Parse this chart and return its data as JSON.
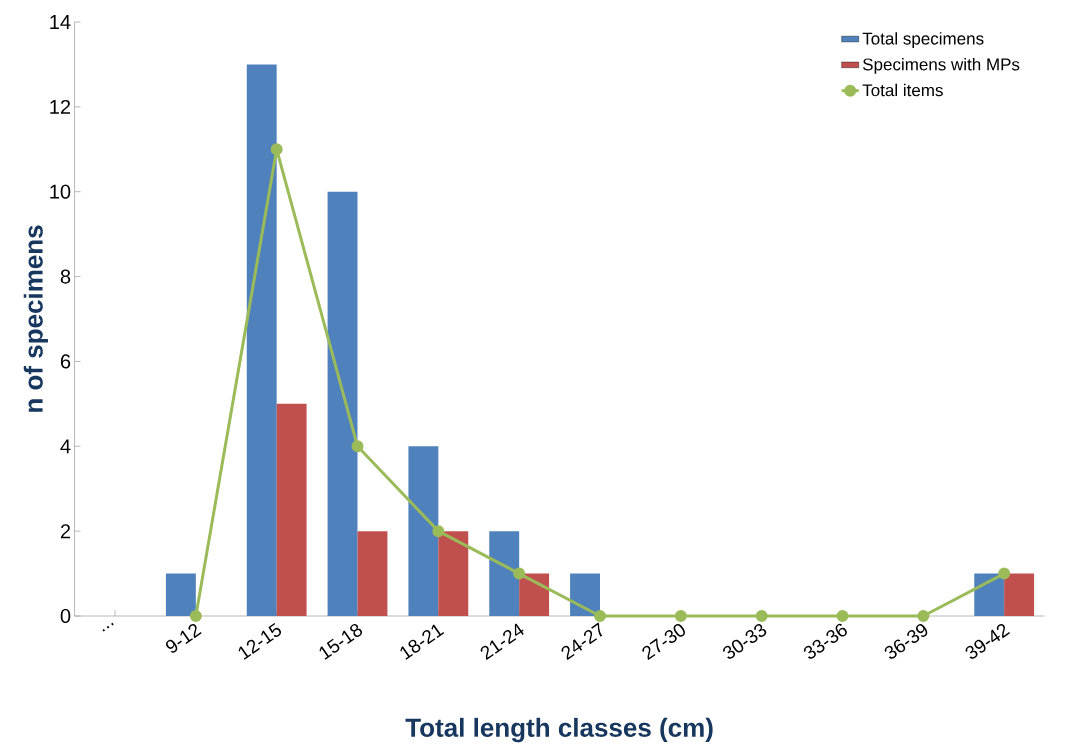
{
  "chart_data": {
    "type": "bar",
    "xlabel": "Total length classes (cm)",
    "ylabel": "n of specimens",
    "categories": [
      "...",
      "9-12",
      "12-15",
      "15-18",
      "18-21",
      "21-24",
      "24-27",
      "27-30",
      "30-33",
      "33-36",
      "36-39",
      "39-42"
    ],
    "series": [
      {
        "name": "Total specimens",
        "type": "bar",
        "color": "#4f81bd",
        "values": [
          null,
          1,
          13,
          10,
          4,
          2,
          1,
          0,
          0,
          0,
          0,
          1
        ]
      },
      {
        "name": "Specimens with MPs",
        "type": "bar",
        "color": "#c0504d",
        "values": [
          null,
          0,
          5,
          2,
          2,
          1,
          0,
          0,
          0,
          0,
          0,
          1
        ]
      },
      {
        "name": "Total items",
        "type": "line",
        "color": "#9bbb59",
        "marker": "circle",
        "line_style": "solid",
        "values": [
          null,
          0,
          11,
          4,
          2,
          1,
          0,
          0,
          0,
          0,
          0,
          1
        ]
      }
    ],
    "ylim": [
      0,
      14
    ],
    "yticks": [
      0,
      2,
      4,
      6,
      8,
      10,
      12,
      14
    ],
    "legend": "top right"
  }
}
